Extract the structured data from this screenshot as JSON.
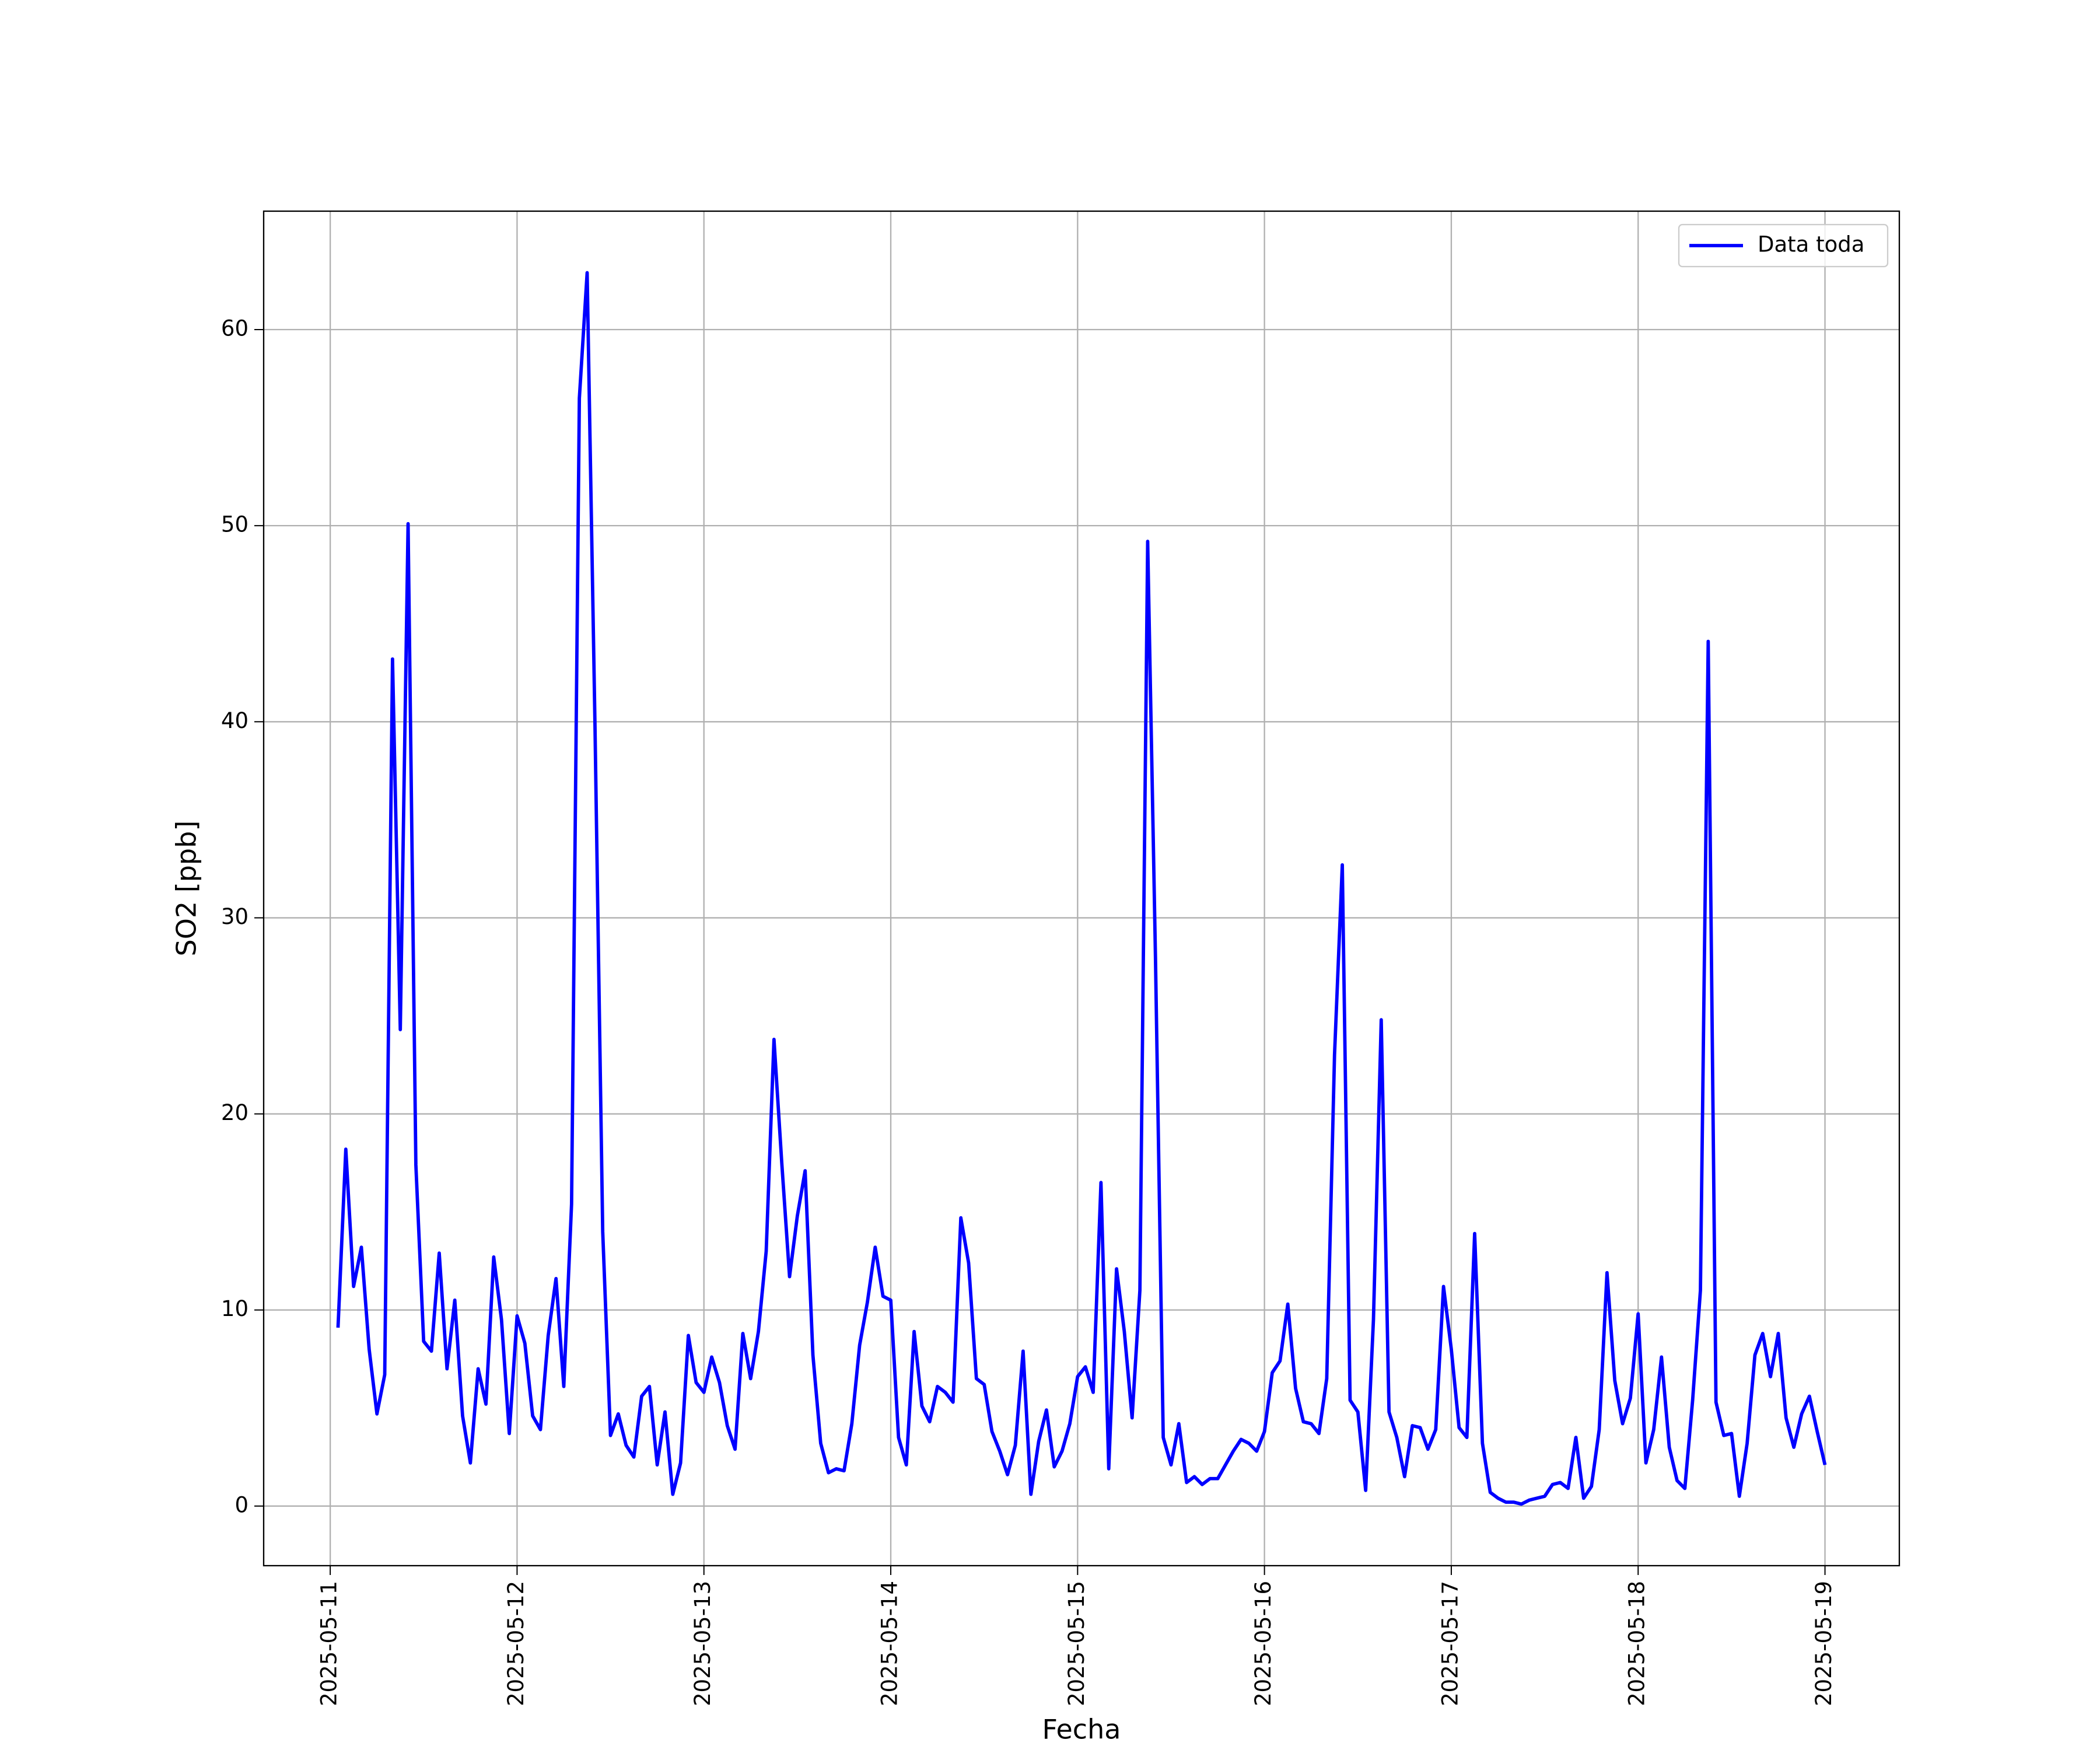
{
  "chart_data": {
    "type": "line",
    "xlabel": "Fecha",
    "ylabel": "SO2 [ppb]",
    "x": [
      "2025-05-11 01:00",
      "2025-05-11 02:00",
      "2025-05-11 03:00",
      "2025-05-11 04:00",
      "2025-05-11 05:00",
      "2025-05-11 06:00",
      "2025-05-11 07:00",
      "2025-05-11 08:00",
      "2025-05-11 09:00",
      "2025-05-11 10:00",
      "2025-05-11 11:00",
      "2025-05-11 12:00",
      "2025-05-11 13:00",
      "2025-05-11 14:00",
      "2025-05-11 15:00",
      "2025-05-11 16:00",
      "2025-05-11 17:00",
      "2025-05-11 18:00",
      "2025-05-11 19:00",
      "2025-05-11 20:00",
      "2025-05-11 21:00",
      "2025-05-11 22:00",
      "2025-05-11 23:00",
      "2025-05-12 00:00",
      "2025-05-12 01:00",
      "2025-05-12 02:00",
      "2025-05-12 03:00",
      "2025-05-12 04:00",
      "2025-05-12 05:00",
      "2025-05-12 06:00",
      "2025-05-12 07:00",
      "2025-05-12 08:00",
      "2025-05-12 09:00",
      "2025-05-12 10:00",
      "2025-05-12 11:00",
      "2025-05-12 12:00",
      "2025-05-12 13:00",
      "2025-05-12 14:00",
      "2025-05-12 15:00",
      "2025-05-12 16:00",
      "2025-05-12 17:00",
      "2025-05-12 18:00",
      "2025-05-12 19:00",
      "2025-05-12 20:00",
      "2025-05-12 21:00",
      "2025-05-12 22:00",
      "2025-05-12 23:00",
      "2025-05-13 00:00",
      "2025-05-13 01:00",
      "2025-05-13 02:00",
      "2025-05-13 03:00",
      "2025-05-13 04:00",
      "2025-05-13 05:00",
      "2025-05-13 06:00",
      "2025-05-13 07:00",
      "2025-05-13 08:00",
      "2025-05-13 09:00",
      "2025-05-13 10:00",
      "2025-05-13 11:00",
      "2025-05-13 12:00",
      "2025-05-13 13:00",
      "2025-05-13 14:00",
      "2025-05-13 15:00",
      "2025-05-13 16:00",
      "2025-05-13 17:00",
      "2025-05-13 18:00",
      "2025-05-13 19:00",
      "2025-05-13 20:00",
      "2025-05-13 21:00",
      "2025-05-13 22:00",
      "2025-05-13 23:00",
      "2025-05-14 00:00",
      "2025-05-14 01:00",
      "2025-05-14 02:00",
      "2025-05-14 03:00",
      "2025-05-14 04:00",
      "2025-05-14 05:00",
      "2025-05-14 06:00",
      "2025-05-14 07:00",
      "2025-05-14 08:00",
      "2025-05-14 09:00",
      "2025-05-14 10:00",
      "2025-05-14 11:00",
      "2025-05-14 12:00",
      "2025-05-14 13:00",
      "2025-05-14 14:00",
      "2025-05-14 15:00",
      "2025-05-14 16:00",
      "2025-05-14 17:00",
      "2025-05-14 18:00",
      "2025-05-14 19:00",
      "2025-05-14 20:00",
      "2025-05-14 21:00",
      "2025-05-14 22:00",
      "2025-05-14 23:00",
      "2025-05-15 00:00",
      "2025-05-15 01:00",
      "2025-05-15 02:00",
      "2025-05-15 03:00",
      "2025-05-15 04:00",
      "2025-05-15 05:00",
      "2025-05-15 06:00",
      "2025-05-15 07:00",
      "2025-05-15 08:00",
      "2025-05-15 09:00",
      "2025-05-15 10:00",
      "2025-05-15 11:00",
      "2025-05-15 12:00",
      "2025-05-15 13:00",
      "2025-05-15 14:00",
      "2025-05-15 15:00",
      "2025-05-15 16:00",
      "2025-05-15 17:00",
      "2025-05-15 18:00",
      "2025-05-15 19:00",
      "2025-05-15 20:00",
      "2025-05-15 21:00",
      "2025-05-15 22:00",
      "2025-05-15 23:00",
      "2025-05-16 00:00",
      "2025-05-16 01:00",
      "2025-05-16 02:00",
      "2025-05-16 03:00",
      "2025-05-16 04:00",
      "2025-05-16 05:00",
      "2025-05-16 06:00",
      "2025-05-16 07:00",
      "2025-05-16 08:00",
      "2025-05-16 09:00",
      "2025-05-16 10:00",
      "2025-05-16 11:00",
      "2025-05-16 12:00",
      "2025-05-16 13:00",
      "2025-05-16 14:00",
      "2025-05-16 15:00",
      "2025-05-16 16:00",
      "2025-05-16 17:00",
      "2025-05-16 18:00",
      "2025-05-16 19:00",
      "2025-05-16 20:00",
      "2025-05-16 21:00",
      "2025-05-16 22:00",
      "2025-05-16 23:00",
      "2025-05-17 00:00",
      "2025-05-17 01:00",
      "2025-05-17 02:00",
      "2025-05-17 03:00",
      "2025-05-17 04:00",
      "2025-05-17 05:00",
      "2025-05-17 06:00",
      "2025-05-17 07:00",
      "2025-05-17 08:00",
      "2025-05-17 09:00",
      "2025-05-17 10:00",
      "2025-05-17 11:00",
      "2025-05-17 12:00",
      "2025-05-17 13:00",
      "2025-05-17 14:00",
      "2025-05-17 15:00",
      "2025-05-17 16:00",
      "2025-05-17 17:00",
      "2025-05-17 18:00",
      "2025-05-17 19:00",
      "2025-05-17 20:00",
      "2025-05-17 21:00",
      "2025-05-17 22:00",
      "2025-05-17 23:00",
      "2025-05-18 00:00",
      "2025-05-18 01:00",
      "2025-05-18 02:00",
      "2025-05-18 03:00",
      "2025-05-18 04:00",
      "2025-05-18 05:00",
      "2025-05-18 06:00",
      "2025-05-18 07:00",
      "2025-05-18 08:00",
      "2025-05-18 09:00",
      "2025-05-18 10:00",
      "2025-05-18 11:00",
      "2025-05-18 12:00",
      "2025-05-18 13:00",
      "2025-05-18 14:00",
      "2025-05-18 15:00",
      "2025-05-18 16:00",
      "2025-05-18 17:00",
      "2025-05-18 18:00",
      "2025-05-18 19:00",
      "2025-05-18 20:00",
      "2025-05-18 21:00",
      "2025-05-18 22:00",
      "2025-05-18 23:00",
      "2025-05-19 00:00"
    ],
    "series": [
      {
        "name": "Data toda",
        "color": "#0000ff",
        "values": [
          9.1,
          18.2,
          11.2,
          13.2,
          8,
          4.7,
          6.7,
          43.2,
          24.3,
          50.1,
          17.4,
          8.4,
          7.9,
          12.9,
          7,
          10.5,
          4.6,
          2.2,
          7,
          5.2,
          12.7,
          9.5,
          3.7,
          9.7,
          8.3,
          4.6,
          3.9,
          8.7,
          11.6,
          6.1,
          15.4,
          56.5,
          62.9,
          40,
          14,
          3.6,
          4.7,
          3.1,
          2.5,
          5.6,
          6.1,
          2.1,
          4.8,
          0.6,
          2.2,
          8.7,
          6.3,
          5.8,
          7.6,
          6.3,
          4.1,
          2.9,
          8.8,
          6.5,
          8.9,
          13,
          23.8,
          17.5,
          11.7,
          14.8,
          17.1,
          7.7,
          3.2,
          1.7,
          1.9,
          1.8,
          4.2,
          8.2,
          10.4,
          13.2,
          10.7,
          10.5,
          3.5,
          2.1,
          8.9,
          5.1,
          4.3,
          6.1,
          5.8,
          5.3,
          14.7,
          12.4,
          6.5,
          6.2,
          3.8,
          2.8,
          1.6,
          3.1,
          7.9,
          0.6,
          3.3,
          4.9,
          2,
          2.8,
          4.2,
          6.6,
          7.1,
          5.8,
          16.5,
          1.9,
          12.1,
          8.9,
          4.5,
          11,
          49.2,
          28,
          3.5,
          2.1,
          4.2,
          1.2,
          1.5,
          1.1,
          1.4,
          1.4,
          2.1,
          2.8,
          3.4,
          3.2,
          2.8,
          3.8,
          6.8,
          7.4,
          10.3,
          6,
          4.3,
          4.2,
          3.7,
          6.5,
          23,
          32.7,
          5.4,
          4.8,
          0.8,
          9.5,
          24.8,
          4.8,
          3.5,
          1.5,
          4.1,
          4,
          2.9,
          3.9,
          11.2,
          8,
          4,
          3.5,
          13.9,
          3.2,
          0.7,
          0.4,
          0.2,
          0.2,
          0.1,
          0.3,
          0.4,
          0.5,
          1.1,
          1.2,
          0.9,
          3.5,
          0.4,
          1,
          3.9,
          11.9,
          6.4,
          4.2,
          5.5,
          9.8,
          2.2,
          3.9,
          7.6,
          3,
          1.3,
          0.9,
          5.4,
          11,
          44.1,
          5.3,
          3.6,
          3.7,
          0.5,
          3.2,
          7.7,
          8.8,
          6.6,
          8.8,
          4.5,
          3,
          4.7,
          5.6,
          3.8,
          2.1
        ]
      }
    ],
    "xlim": [
      "2025-05-10 15:27",
      "2025-05-19 09:33"
    ],
    "xticks": [
      "2025-05-11",
      "2025-05-12",
      "2025-05-13",
      "2025-05-14",
      "2025-05-15",
      "2025-05-16",
      "2025-05-17",
      "2025-05-18",
      "2025-05-19"
    ],
    "ylim": [
      -3.04,
      66.04
    ],
    "yticks": [
      0,
      10,
      20,
      30,
      40,
      50,
      60
    ],
    "grid": true,
    "legend": "upper right"
  }
}
